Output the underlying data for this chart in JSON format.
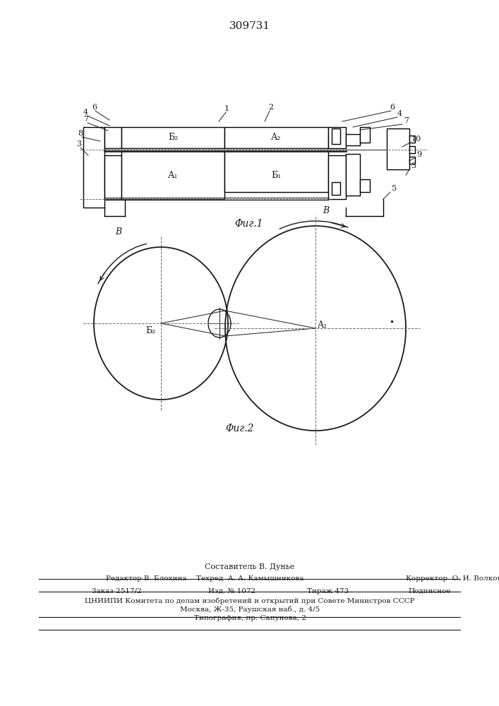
{
  "title": "309731",
  "fig1_caption": "Φиг.1",
  "fig2_caption": "Φиг.2",
  "bg_color": "#ffffff",
  "line_color": "#1a1a1a",
  "footer_lines": [
    "Составитель В. Дунье",
    "Редактор В. Блохина",
    "Техред  А. А. Камышникова",
    "Корректор  О. И. Волкова",
    "Заказ 2517/2",
    "Изд. № 1072",
    "Тираж 473",
    "Подписное",
    "ЦНИИПИ Комитета по делам изобретений и открытий при Совете Министров СССР",
    "Москва, Ж-35, Раушская наб., д. 4/5",
    "Типография, пр. Сапунова, 2"
  ]
}
